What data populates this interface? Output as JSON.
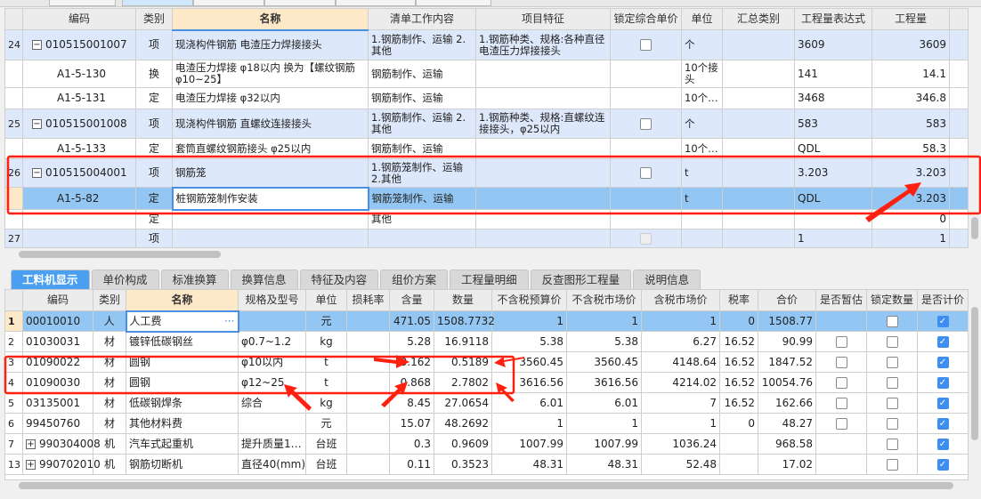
{
  "upper": {
    "headers": [
      "编码",
      "类别",
      "名称",
      "清单工作内容",
      "项目特征",
      "锁定综合单价",
      "单位",
      "汇总类别",
      "工程量表达式",
      "工程量"
    ],
    "rows": [
      {
        "no": "24",
        "code": "010515001007",
        "type": "项",
        "name": "现浇构件钢筋 电渣压力焊接接头",
        "content": "1.钢筋制作、运输 2.其他",
        "feature": "1.钢筋种类、规格:各种直径电渣压力焊接接头",
        "lock": "unchecked",
        "unit": "个",
        "sum": "",
        "expr": "3609",
        "qty": "3609",
        "kind": "main"
      },
      {
        "no": "",
        "code": "A1-5-130",
        "type": "换",
        "name": "电渣压力焊接 φ18以内  换为【螺纹钢筋φ10~25】",
        "content": "钢筋制作、运输",
        "feature": "",
        "lock": "",
        "unit": "10个接头",
        "sum": "",
        "expr": "141",
        "qty": "14.1",
        "kind": "sub"
      },
      {
        "no": "",
        "code": "A1-5-131",
        "type": "定",
        "name": "电渣压力焊接 φ32以内",
        "content": "钢筋制作、运输",
        "feature": "",
        "lock": "",
        "unit": "10个…",
        "sum": "",
        "expr": "3468",
        "qty": "346.8",
        "kind": "sub"
      },
      {
        "no": "25",
        "code": "010515001008",
        "type": "项",
        "name": "现浇构件钢筋 直螺纹连接接头",
        "content": "1.钢筋制作、运输 2.其他",
        "feature": "1.钢筋种类、规格:直螺纹连接接头，φ25以内",
        "lock": "unchecked",
        "unit": "个",
        "sum": "",
        "expr": "583",
        "qty": "583",
        "kind": "main"
      },
      {
        "no": "",
        "code": "A1-5-133",
        "type": "定",
        "name": "套筒直螺纹钢筋接头 φ25以内",
        "content": "钢筋制作、运输",
        "feature": "",
        "lock": "",
        "unit": "10个…",
        "sum": "",
        "expr": "QDL",
        "qty": "58.3",
        "kind": "sub"
      },
      {
        "no": "26",
        "code": "010515004001",
        "type": "项",
        "name": "钢筋笼",
        "content": "1.钢筋笼制作、运输 2.其他",
        "feature": "",
        "lock": "unchecked",
        "unit": "t",
        "sum": "",
        "expr": "3.203",
        "qty": "3.203",
        "kind": "main"
      },
      {
        "no": "",
        "code": "A1-5-82",
        "type": "定",
        "name": "桩钢筋笼制作安装",
        "content": "钢筋笼制作、运输",
        "feature": "",
        "lock": "",
        "unit": "t",
        "sum": "",
        "expr": "QDL",
        "qty": "3.203",
        "kind": "sel"
      },
      {
        "no": "",
        "code": "",
        "type": "定",
        "name": "",
        "content": "其他",
        "feature": "",
        "lock": "",
        "unit": "",
        "sum": "",
        "expr": "",
        "qty": "0",
        "kind": "sub"
      },
      {
        "no": "27",
        "code": "",
        "type": "项",
        "name": "",
        "content": "",
        "feature": "",
        "lock": "disabled",
        "unit": "",
        "sum": "",
        "expr": "1",
        "qty": "1",
        "kind": "main"
      }
    ]
  },
  "tabs": [
    "工料机显示",
    "单价构成",
    "标准换算",
    "换算信息",
    "特征及内容",
    "组价方案",
    "工程量明细",
    "反查图形工程量",
    "说明信息"
  ],
  "lower": {
    "headers": [
      "编码",
      "类别",
      "名称",
      "规格及型号",
      "单位",
      "损耗率",
      "含量",
      "数量",
      "不含税预算价",
      "不含税市场价",
      "含税市场价",
      "税率",
      "合价",
      "是否暂估",
      "锁定数量",
      "是否计价"
    ],
    "rows": [
      {
        "no": "1",
        "code": "00010010",
        "type": "人",
        "name": "人工费",
        "spec": "",
        "unit": "元",
        "loss": "",
        "content": "471.05",
        "qty": "1508.7732",
        "p1": "1",
        "p2": "1",
        "p3": "1",
        "tax": "0",
        "total": "1508.77",
        "est": "",
        "lockq": "unchecked",
        "priced": "checked",
        "expand": false
      },
      {
        "no": "2",
        "code": "01030031",
        "type": "材",
        "name": "镀锌低碳钢丝",
        "spec": "φ0.7~1.2",
        "unit": "kg",
        "loss": "",
        "content": "5.28",
        "qty": "16.9118",
        "p1": "5.38",
        "p2": "5.38",
        "p3": "6.27",
        "tax": "16.52",
        "total": "90.99",
        "est": "unchecked",
        "lockq": "unchecked",
        "priced": "checked",
        "expand": false
      },
      {
        "no": "3",
        "code": "01090022",
        "type": "材",
        "name": "圆钢",
        "spec": "φ10以内",
        "unit": "t",
        "loss": "",
        "content": "0.162",
        "qty": "0.5189",
        "p1": "3560.45",
        "p2": "3560.45",
        "p3": "4148.64",
        "tax": "16.52",
        "total": "1847.52",
        "est": "unchecked",
        "lockq": "unchecked",
        "priced": "checked",
        "expand": false
      },
      {
        "no": "4",
        "code": "01090030",
        "type": "材",
        "name": "圆钢",
        "spec": "φ12~25",
        "unit": "t",
        "loss": "",
        "content": "0.868",
        "qty": "2.7802",
        "p1": "3616.56",
        "p2": "3616.56",
        "p3": "4214.02",
        "tax": "16.52",
        "total": "10054.76",
        "est": "unchecked",
        "lockq": "unchecked",
        "priced": "checked",
        "expand": false
      },
      {
        "no": "5",
        "code": "03135001",
        "type": "材",
        "name": "低碳钢焊条",
        "spec": "综合",
        "unit": "kg",
        "loss": "",
        "content": "8.45",
        "qty": "27.0654",
        "p1": "6.01",
        "p2": "6.01",
        "p3": "7",
        "tax": "16.52",
        "total": "162.66",
        "est": "unchecked",
        "lockq": "unchecked",
        "priced": "checked",
        "expand": false
      },
      {
        "no": "6",
        "code": "99450760",
        "type": "材",
        "name": "其他材料费",
        "spec": "",
        "unit": "元",
        "loss": "",
        "content": "15.07",
        "qty": "48.2692",
        "p1": "1",
        "p2": "1",
        "p3": "1",
        "tax": "0",
        "total": "48.27",
        "est": "unchecked",
        "lockq": "unchecked",
        "priced": "checked",
        "expand": false
      },
      {
        "no": "7",
        "code": "990304008",
        "type": "机",
        "name": "汽车式起重机",
        "spec": "提升质量1…",
        "unit": "台班",
        "loss": "",
        "content": "0.3",
        "qty": "0.9609",
        "p1": "1007.99",
        "p2": "1007.99",
        "p3": "1036.24",
        "tax": "",
        "total": "968.58",
        "est": "",
        "lockq": "unchecked",
        "priced": "checked",
        "expand": true
      },
      {
        "no": "13",
        "code": "990702010",
        "type": "机",
        "name": "钢筋切断机",
        "spec": "直径40(mm)",
        "unit": "台班",
        "loss": "",
        "content": "0.11",
        "qty": "0.3523",
        "p1": "48.31",
        "p2": "48.31",
        "p3": "52.48",
        "tax": "",
        "total": "17.02",
        "est": "",
        "lockq": "unchecked",
        "priced": "checked",
        "expand": true
      }
    ]
  },
  "annotation_color": "#ff2010"
}
